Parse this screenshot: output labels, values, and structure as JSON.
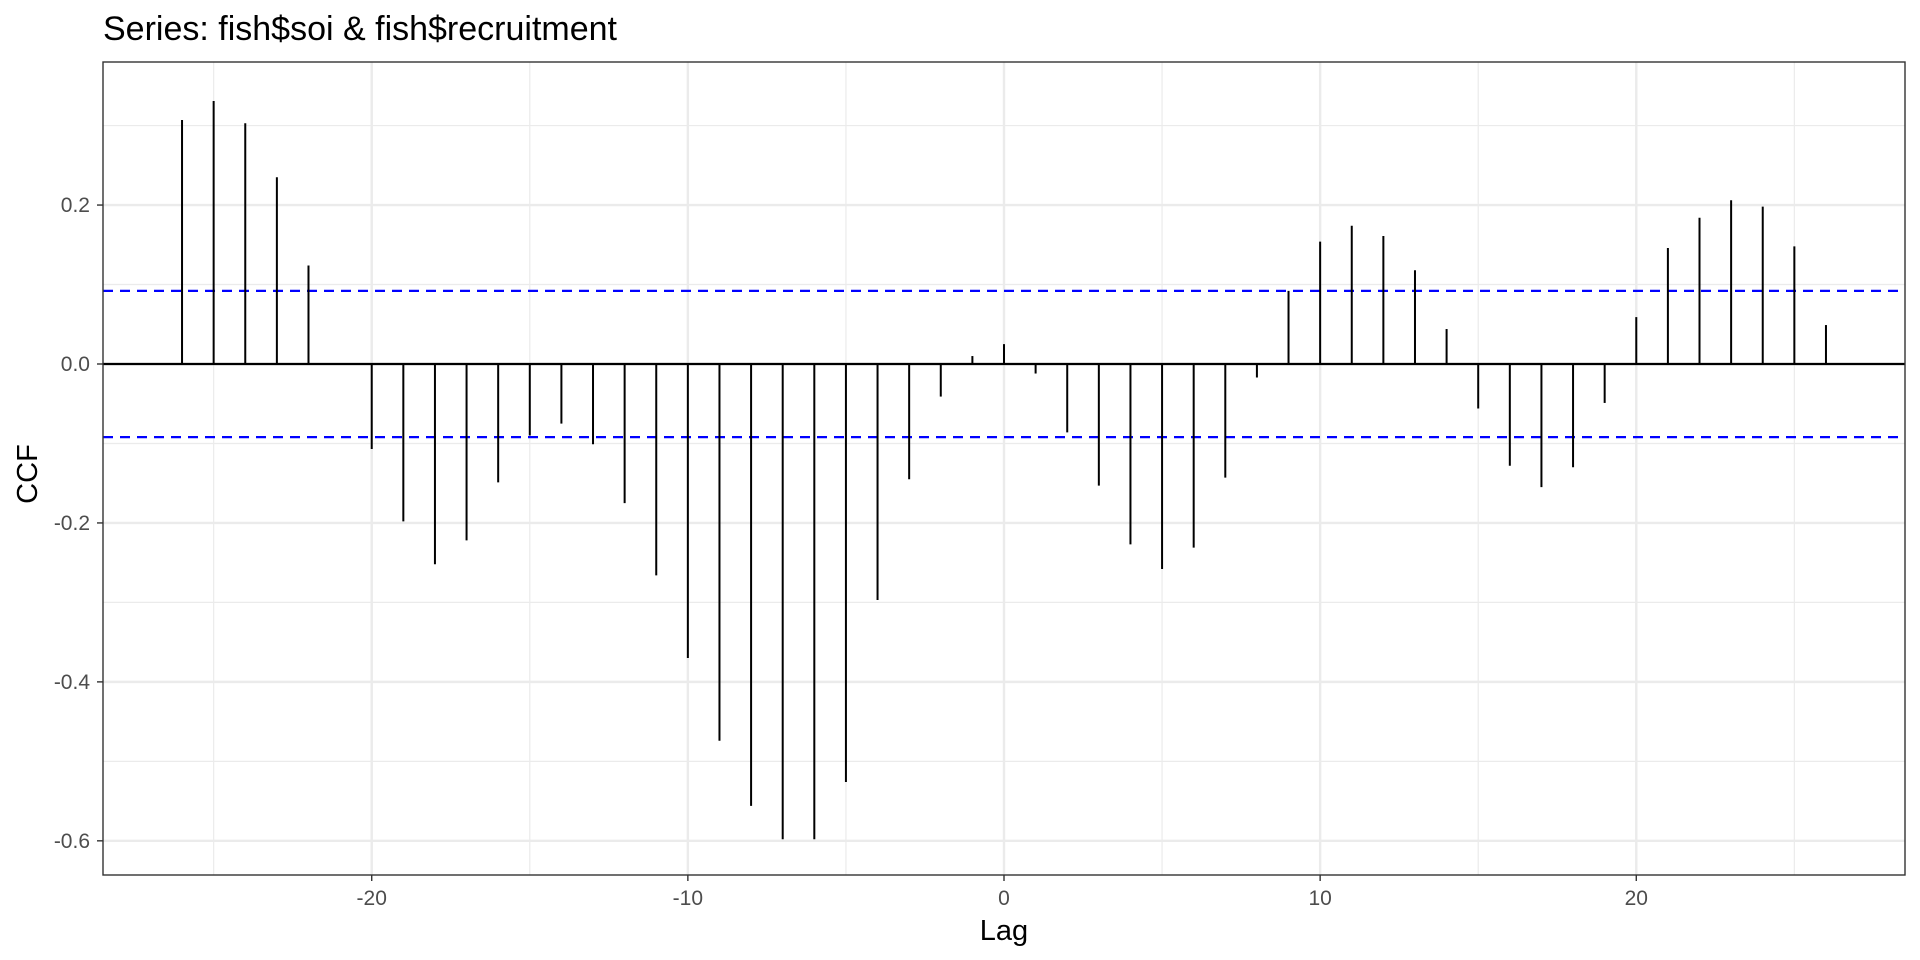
{
  "chart_data": {
    "type": "bar",
    "title": "Series: fish$soi & fish$recruitment",
    "xlabel": "Lag",
    "ylabel": "CCF",
    "xlim": [
      -28.5,
      28.5
    ],
    "ylim": [
      -0.643,
      0.38
    ],
    "x_ticks": [
      -20,
      -10,
      0,
      10,
      20
    ],
    "x_tick_labels": [
      "-20",
      "-10",
      "0",
      "10",
      "20"
    ],
    "y_ticks": [
      -0.6,
      -0.4,
      -0.2,
      0.0,
      0.2
    ],
    "y_tick_labels": [
      "-0.6",
      "-0.4",
      "-0.2",
      "0.0",
      "0.2"
    ],
    "grid": true,
    "confidence_bound": 0.092,
    "colors": {
      "bars": "#000000",
      "zero_line": "#000000",
      "confidence_lines": "#0000ff",
      "grid": "#ebebeb",
      "panel_border": "#333333"
    },
    "x": [
      -26,
      -25,
      -24,
      -23,
      -22,
      -21,
      -20,
      -19,
      -18,
      -17,
      -16,
      -15,
      -14,
      -13,
      -12,
      -11,
      -10,
      -9,
      -8,
      -7,
      -6,
      -5,
      -4,
      -3,
      -2,
      -1,
      0,
      1,
      2,
      3,
      4,
      5,
      6,
      7,
      8,
      9,
      10,
      11,
      12,
      13,
      14,
      15,
      16,
      17,
      18,
      19,
      20,
      21,
      22,
      23,
      24,
      25,
      26
    ],
    "values": [
      0.307,
      0.331,
      0.303,
      0.235,
      0.124,
      0.0,
      -0.107,
      -0.198,
      -0.252,
      -0.222,
      -0.149,
      -0.09,
      -0.075,
      -0.101,
      -0.175,
      -0.266,
      -0.37,
      -0.474,
      -0.556,
      -0.598,
      -0.598,
      -0.526,
      -0.297,
      -0.145,
      -0.041,
      0.01,
      0.025,
      -0.012,
      -0.086,
      -0.153,
      -0.227,
      -0.258,
      -0.231,
      -0.143,
      -0.017,
      0.092,
      0.154,
      0.174,
      0.161,
      0.118,
      0.044,
      -0.056,
      -0.128,
      -0.155,
      -0.13,
      -0.049,
      0.059,
      0.146,
      0.184,
      0.206,
      0.198,
      0.148,
      0.049
    ]
  }
}
